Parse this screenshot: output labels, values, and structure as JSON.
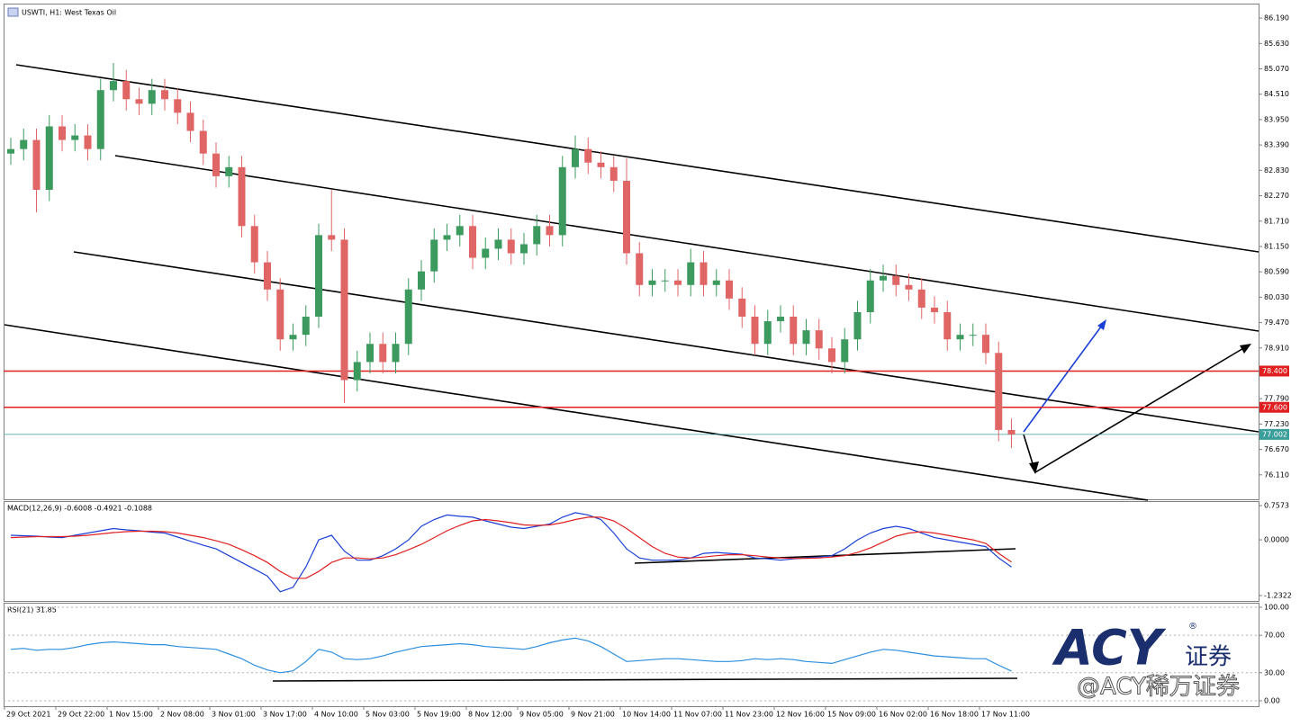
{
  "chart_data": [
    {
      "type": "candlestick",
      "title": "USWTI, H1: West Texas Oil",
      "categories": [
        "29 Oct 2021",
        null,
        null,
        null,
        "29 Oct 22:00",
        null,
        null,
        null,
        "1 Nov 15:00",
        null,
        null,
        null,
        "2 Nov 08:00",
        null,
        null,
        null,
        "3 Nov 01:00",
        null,
        null,
        null,
        "3 Nov 17:00",
        null,
        null,
        null,
        "4 Nov 10:00",
        null,
        null,
        null,
        "5 Nov 03:00",
        null,
        null,
        null,
        "5 Nov 19:00",
        null,
        null,
        null,
        "8 Nov 12:00",
        null,
        null,
        null,
        "9 Nov 05:00",
        null,
        null,
        null,
        "9 Nov 21:00",
        null,
        null,
        null,
        "10 Nov 14:00",
        null,
        null,
        null,
        "11 Nov 07:00",
        null,
        null,
        null,
        "11 Nov 23:00",
        null,
        null,
        null,
        "12 Nov 16:00",
        null,
        null,
        null,
        "15 Nov 09:00",
        null,
        null,
        null,
        "16 Nov 02:00",
        null,
        null,
        null,
        "16 Nov 18:00",
        null,
        null,
        null,
        "17 Nov 11:00",
        null,
        null
      ],
      "open": [
        83.2,
        83.3,
        83.5,
        82.4,
        83.8,
        83.5,
        83.6,
        83.3,
        84.6,
        84.8,
        84.4,
        84.3,
        84.6,
        84.4,
        84.1,
        83.7,
        83.2,
        82.7,
        82.9,
        81.6,
        80.8,
        80.2,
        79.1,
        79.2,
        79.6,
        81.4,
        81.3,
        78.2,
        78.6,
        79.0,
        78.6,
        79.0,
        80.2,
        80.6,
        81.3,
        81.4,
        81.6,
        80.9,
        81.1,
        81.3,
        81.0,
        81.2,
        81.6,
        81.4,
        82.9,
        83.3,
        83.0,
        82.9,
        82.6,
        81.0,
        80.3,
        80.4,
        80.4,
        80.3,
        80.8,
        80.3,
        80.4,
        80.0,
        79.6,
        79.0,
        79.5,
        79.6,
        79.0,
        79.3,
        78.9,
        78.6,
        79.1,
        79.7,
        80.4,
        80.5,
        80.3,
        80.2,
        79.8,
        79.7,
        79.1,
        79.2,
        79.2,
        78.8,
        77.1
      ],
      "high": [
        83.55,
        83.75,
        83.75,
        84.05,
        84.05,
        83.85,
        83.85,
        84.85,
        85.2,
        85.05,
        84.65,
        84.85,
        84.85,
        84.65,
        84.35,
        83.95,
        83.45,
        83.15,
        83.15,
        81.85,
        81.05,
        80.45,
        79.45,
        79.85,
        81.65,
        82.4,
        81.55,
        78.85,
        79.25,
        79.25,
        79.25,
        80.45,
        80.85,
        81.55,
        81.65,
        81.85,
        81.85,
        81.35,
        81.55,
        81.55,
        81.45,
        81.85,
        81.85,
        83.15,
        83.6,
        83.55,
        83.25,
        83.15,
        83.1,
        81.25,
        80.65,
        80.65,
        80.65,
        81.1,
        81.05,
        80.65,
        80.65,
        80.25,
        79.85,
        79.75,
        79.85,
        79.85,
        79.55,
        79.55,
        79.15,
        79.35,
        79.95,
        80.65,
        80.75,
        80.75,
        80.55,
        80.45,
        80.05,
        79.95,
        79.45,
        79.45,
        79.45,
        79.05,
        77.35
      ],
      "low": [
        82.95,
        83.05,
        81.9,
        82.15,
        83.25,
        83.25,
        83.05,
        83.05,
        84.35,
        84.15,
        84.05,
        84.05,
        84.15,
        83.85,
        83.45,
        82.95,
        82.45,
        82.45,
        81.35,
        80.55,
        79.95,
        78.85,
        78.85,
        78.95,
        79.35,
        81.05,
        77.7,
        77.95,
        78.35,
        78.35,
        78.35,
        78.75,
        79.95,
        80.35,
        81.05,
        81.15,
        80.65,
        80.65,
        80.85,
        80.75,
        80.75,
        80.95,
        81.15,
        81.15,
        82.65,
        82.75,
        82.65,
        82.35,
        80.75,
        80.05,
        80.05,
        80.15,
        80.05,
        80.05,
        80.05,
        80.05,
        79.75,
        79.35,
        78.75,
        78.75,
        79.25,
        78.75,
        78.75,
        78.65,
        78.35,
        78.35,
        78.85,
        79.45,
        80.15,
        80.05,
        79.95,
        79.55,
        79.45,
        78.85,
        78.85,
        78.95,
        78.55,
        76.85,
        76.7
      ],
      "close": [
        83.3,
        83.5,
        82.4,
        83.8,
        83.5,
        83.6,
        83.3,
        84.6,
        84.8,
        84.4,
        84.3,
        84.6,
        84.4,
        84.1,
        83.7,
        83.2,
        82.7,
        82.9,
        81.6,
        80.8,
        80.2,
        79.1,
        79.2,
        79.6,
        81.4,
        81.3,
        78.2,
        78.6,
        79.0,
        78.6,
        79.0,
        80.2,
        80.6,
        81.3,
        81.4,
        81.6,
        80.9,
        81.1,
        81.3,
        81.0,
        81.2,
        81.6,
        81.4,
        82.9,
        83.3,
        83.0,
        82.9,
        82.6,
        81.0,
        80.3,
        80.4,
        80.4,
        80.3,
        80.8,
        80.3,
        80.4,
        80.0,
        79.6,
        79.0,
        79.5,
        79.6,
        79.0,
        79.3,
        78.9,
        78.6,
        79.1,
        79.7,
        80.4,
        80.5,
        80.3,
        80.2,
        79.8,
        79.7,
        79.1,
        79.2,
        79.2,
        78.8,
        77.1,
        77.0
      ],
      "up_color": "#3c9a5f",
      "down_color": "#e06666",
      "ylim": [
        75.57,
        86.51
      ],
      "yticks": [
        {
          "value": 86.19,
          "label": "86.190"
        },
        {
          "value": 85.63,
          "label": "85.630"
        },
        {
          "value": 85.07,
          "label": "85.070"
        },
        {
          "value": 84.51,
          "label": "84.510"
        },
        {
          "value": 83.95,
          "label": "83.950"
        },
        {
          "value": 83.39,
          "label": "83.390"
        },
        {
          "value": 82.83,
          "label": "82.830"
        },
        {
          "value": 82.27,
          "label": "82.270"
        },
        {
          "value": 81.71,
          "label": "81.710"
        },
        {
          "value": 81.15,
          "label": "81.150"
        },
        {
          "value": 80.59,
          "label": "80.590"
        },
        {
          "value": 80.03,
          "label": "80.030"
        },
        {
          "value": 79.47,
          "label": "79.470"
        },
        {
          "value": 78.91,
          "label": "78.910"
        },
        {
          "value": 77.79,
          "label": "77.790"
        },
        {
          "value": 77.23,
          "label": "77.230"
        },
        {
          "value": 76.67,
          "label": "76.670"
        },
        {
          "value": 76.11,
          "label": "76.110"
        }
      ],
      "levels": [
        {
          "value": 78.4,
          "label": "78.400",
          "color": "#e02020"
        },
        {
          "value": 77.6,
          "label": "77.600",
          "color": "#e02020"
        },
        {
          "value": 77.002,
          "label": "77.002",
          "color": "#3a9e9a"
        }
      ]
    },
    {
      "type": "macd",
      "label": "MACD(12,26,9) -0.6008 -0.4921 -0.1088",
      "ylim": [
        -1.352,
        0.857
      ],
      "yticks": [
        0.7573,
        {
          "value": 0,
          "label": "0.0000"
        },
        -1.2322
      ],
      "series": [
        {
          "color": "#1a3fd6",
          "values": [
            0.1,
            0.09,
            0.08,
            0.06,
            0.05,
            0.1,
            0.15,
            0.2,
            0.25,
            0.22,
            0.2,
            0.17,
            0.15,
            0.06,
            -0.03,
            -0.12,
            -0.2,
            -0.35,
            -0.5,
            -0.65,
            -0.8,
            -1.15,
            -1.05,
            -0.6,
            0.0,
            0.1,
            -0.25,
            -0.45,
            -0.45,
            -0.35,
            -0.2,
            0.0,
            0.3,
            0.45,
            0.55,
            0.52,
            0.5,
            0.42,
            0.35,
            0.28,
            0.25,
            0.3,
            0.35,
            0.5,
            0.6,
            0.55,
            0.45,
            0.15,
            -0.2,
            -0.4,
            -0.45,
            -0.45,
            -0.45,
            -0.4,
            -0.3,
            -0.28,
            -0.3,
            -0.32,
            -0.4,
            -0.42,
            -0.45,
            -0.42,
            -0.4,
            -0.38,
            -0.35,
            -0.2,
            0.0,
            0.15,
            0.25,
            0.3,
            0.25,
            0.15,
            0.05,
            0.0,
            -0.05,
            -0.1,
            -0.15,
            -0.4,
            -0.6008
          ]
        },
        {
          "color": "#e02020",
          "values": [
            0.05,
            0.06,
            0.07,
            0.07,
            0.07,
            0.08,
            0.1,
            0.13,
            0.16,
            0.18,
            0.19,
            0.19,
            0.18,
            0.15,
            0.1,
            0.05,
            -0.02,
            -0.1,
            -0.22,
            -0.35,
            -0.5,
            -0.7,
            -0.85,
            -0.85,
            -0.7,
            -0.5,
            -0.4,
            -0.4,
            -0.42,
            -0.4,
            -0.33,
            -0.22,
            -0.1,
            0.05,
            0.2,
            0.32,
            0.42,
            0.45,
            0.42,
            0.38,
            0.33,
            0.32,
            0.33,
            0.38,
            0.45,
            0.5,
            0.5,
            0.42,
            0.25,
            0.05,
            -0.15,
            -0.3,
            -0.38,
            -0.4,
            -0.38,
            -0.35,
            -0.33,
            -0.33,
            -0.35,
            -0.38,
            -0.4,
            -0.41,
            -0.41,
            -0.4,
            -0.38,
            -0.35,
            -0.28,
            -0.18,
            -0.05,
            0.08,
            0.15,
            0.18,
            0.15,
            0.1,
            0.05,
            0.0,
            -0.08,
            -0.3,
            -0.4921
          ]
        }
      ]
    },
    {
      "type": "rsi",
      "label": "RSI(21) 31.85",
      "ylim": [
        -5.8,
        104.8
      ],
      "yticks": [
        {
          "value": 100,
          "label": "100.00"
        },
        {
          "value": 70,
          "label": "70.00"
        },
        {
          "value": 30,
          "label": "30.00"
        },
        {
          "value": 0,
          "label": "0.00"
        }
      ],
      "grid": "dashed",
      "series": [
        {
          "color": "#2a8fe0",
          "values": [
            55,
            56,
            54,
            55,
            55,
            57,
            60,
            62,
            63,
            62,
            61,
            60,
            60,
            58,
            57,
            56,
            55,
            50,
            45,
            38,
            33,
            30,
            32,
            42,
            55,
            52,
            45,
            44,
            45,
            48,
            52,
            55,
            58,
            59,
            60,
            61,
            60,
            58,
            57,
            56,
            55,
            58,
            62,
            65,
            67,
            64,
            58,
            50,
            42,
            43,
            44,
            45,
            45,
            44,
            43,
            42,
            42,
            43,
            45,
            44,
            45,
            44,
            42,
            41,
            40,
            44,
            48,
            52,
            55,
            54,
            52,
            50,
            48,
            47,
            46,
            45,
            45,
            38,
            31.85
          ]
        }
      ]
    },
    {
      "type": "watermark",
      "logo": "ACY",
      "logo_cn": "证券",
      "mark": "®",
      "handle": "@ACY稀万证券"
    }
  ]
}
